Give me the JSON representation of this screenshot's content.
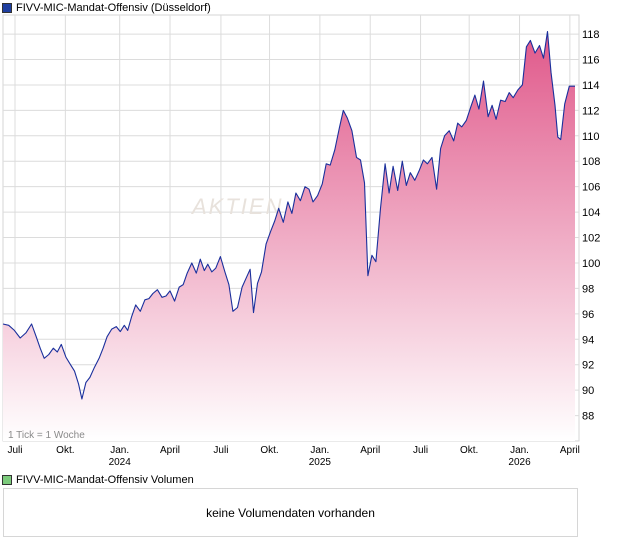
{
  "title": "FIVV-MIC-Mandat-Offensiv (Düsseldorf)",
  "volume_title": "FIVV-MIC-Mandat-Offensiv Volumen",
  "no_volume_text": "keine Volumendaten vorhanden",
  "tick_note": "1 Tick = 1 Woche",
  "watermark": "AKTIEN",
  "colors": {
    "line": "#1a2f9c",
    "fill_top": "#e0588a",
    "fill_bottom": "#ffffff",
    "price_swatch": "#1f3fa0",
    "volume_swatch": "#7ccb7c",
    "grid": "#dcdcdc"
  },
  "chart_data": {
    "type": "area",
    "title": "FIVV-MIC-Mandat-Offensiv (Düsseldorf)",
    "ylim": [
      86,
      119.5
    ],
    "xlim": [
      0,
      100
    ],
    "grid": true,
    "y_ticks": [
      88,
      90,
      92,
      94,
      96,
      98,
      100,
      102,
      104,
      106,
      108,
      110,
      112,
      114,
      116,
      118
    ],
    "x_ticks": [
      {
        "pos": 2.1,
        "label": "Juli",
        "year": ""
      },
      {
        "pos": 10.9,
        "label": "Okt.",
        "year": ""
      },
      {
        "pos": 20.4,
        "label": "Jan.",
        "year": "2024"
      },
      {
        "pos": 29.2,
        "label": "April",
        "year": ""
      },
      {
        "pos": 38.1,
        "label": "Juli",
        "year": ""
      },
      {
        "pos": 46.6,
        "label": "Okt.",
        "year": ""
      },
      {
        "pos": 55.4,
        "label": "Jan.",
        "year": "2025"
      },
      {
        "pos": 64.2,
        "label": "April",
        "year": ""
      },
      {
        "pos": 73.0,
        "label": "Juli",
        "year": ""
      },
      {
        "pos": 81.5,
        "label": "Okt.",
        "year": ""
      },
      {
        "pos": 90.3,
        "label": "Jan.",
        "year": "2026"
      },
      {
        "pos": 99.1,
        "label": "April",
        "year": ""
      }
    ],
    "points": [
      [
        0,
        95.2
      ],
      [
        1.0,
        95.1
      ],
      [
        2.0,
        94.7
      ],
      [
        3.0,
        94.1
      ],
      [
        4.0,
        94.5
      ],
      [
        5.0,
        95.2
      ],
      [
        5.8,
        94.2
      ],
      [
        6.5,
        93.3
      ],
      [
        7.2,
        92.5
      ],
      [
        8.0,
        92.8
      ],
      [
        8.8,
        93.3
      ],
      [
        9.5,
        93.0
      ],
      [
        10.2,
        93.6
      ],
      [
        11.0,
        92.6
      ],
      [
        11.8,
        92.0
      ],
      [
        12.5,
        91.5
      ],
      [
        13.2,
        90.5
      ],
      [
        13.8,
        89.3
      ],
      [
        14.5,
        90.6
      ],
      [
        15.2,
        91.0
      ],
      [
        16.0,
        91.8
      ],
      [
        16.8,
        92.5
      ],
      [
        17.5,
        93.3
      ],
      [
        18.2,
        94.2
      ],
      [
        19.0,
        94.8
      ],
      [
        19.8,
        95.0
      ],
      [
        20.5,
        94.6
      ],
      [
        21.2,
        95.1
      ],
      [
        21.8,
        94.7
      ],
      [
        22.5,
        95.8
      ],
      [
        23.2,
        96.7
      ],
      [
        24.0,
        96.2
      ],
      [
        24.8,
        97.1
      ],
      [
        25.5,
        97.2
      ],
      [
        26.2,
        97.6
      ],
      [
        27.0,
        97.9
      ],
      [
        27.8,
        97.3
      ],
      [
        28.5,
        97.4
      ],
      [
        29.2,
        97.8
      ],
      [
        30.0,
        97.0
      ],
      [
        30.8,
        98.1
      ],
      [
        31.5,
        98.3
      ],
      [
        32.2,
        99.2
      ],
      [
        33.0,
        100.0
      ],
      [
        33.8,
        99.2
      ],
      [
        34.5,
        100.3
      ],
      [
        35.2,
        99.4
      ],
      [
        35.8,
        99.9
      ],
      [
        36.5,
        99.3
      ],
      [
        37.2,
        99.6
      ],
      [
        38.0,
        100.5
      ],
      [
        38.8,
        99.3
      ],
      [
        39.5,
        98.3
      ],
      [
        40.2,
        96.2
      ],
      [
        41.0,
        96.5
      ],
      [
        41.8,
        98.1
      ],
      [
        42.5,
        98.8
      ],
      [
        43.2,
        99.5
      ],
      [
        43.8,
        96.1
      ],
      [
        44.5,
        98.4
      ],
      [
        45.2,
        99.3
      ],
      [
        46.0,
        101.5
      ],
      [
        46.8,
        102.5
      ],
      [
        47.5,
        103.3
      ],
      [
        48.2,
        104.3
      ],
      [
        49.0,
        103.2
      ],
      [
        49.8,
        104.8
      ],
      [
        50.5,
        103.9
      ],
      [
        51.2,
        105.5
      ],
      [
        52.0,
        104.9
      ],
      [
        52.8,
        106.0
      ],
      [
        53.5,
        105.8
      ],
      [
        54.2,
        104.8
      ],
      [
        55.0,
        105.3
      ],
      [
        55.8,
        106.2
      ],
      [
        56.5,
        107.8
      ],
      [
        57.2,
        107.7
      ],
      [
        58.0,
        108.9
      ],
      [
        58.8,
        110.6
      ],
      [
        59.5,
        112.0
      ],
      [
        60.2,
        111.4
      ],
      [
        61.0,
        110.4
      ],
      [
        61.8,
        108.3
      ],
      [
        62.5,
        108.1
      ],
      [
        63.2,
        106.3
      ],
      [
        63.8,
        99.0
      ],
      [
        64.5,
        100.6
      ],
      [
        65.2,
        100.1
      ],
      [
        66.0,
        104.3
      ],
      [
        66.8,
        107.8
      ],
      [
        67.5,
        105.5
      ],
      [
        68.2,
        107.6
      ],
      [
        69.0,
        105.7
      ],
      [
        69.8,
        108.0
      ],
      [
        70.5,
        106.1
      ],
      [
        71.2,
        107.1
      ],
      [
        72.0,
        106.5
      ],
      [
        72.8,
        107.3
      ],
      [
        73.5,
        108.1
      ],
      [
        74.2,
        107.8
      ],
      [
        75.0,
        108.3
      ],
      [
        75.8,
        105.8
      ],
      [
        76.5,
        109.0
      ],
      [
        77.2,
        110.0
      ],
      [
        78.0,
        110.4
      ],
      [
        78.8,
        109.6
      ],
      [
        79.5,
        111.0
      ],
      [
        80.2,
        110.7
      ],
      [
        81.0,
        111.2
      ],
      [
        81.8,
        112.3
      ],
      [
        82.5,
        113.2
      ],
      [
        83.2,
        112.1
      ],
      [
        84.0,
        114.3
      ],
      [
        84.8,
        111.5
      ],
      [
        85.5,
        112.4
      ],
      [
        86.2,
        111.3
      ],
      [
        87.0,
        112.8
      ],
      [
        87.8,
        112.7
      ],
      [
        88.5,
        113.4
      ],
      [
        89.2,
        113.0
      ],
      [
        90.0,
        113.6
      ],
      [
        90.8,
        114.0
      ],
      [
        91.5,
        117.0
      ],
      [
        92.2,
        117.5
      ],
      [
        93.0,
        116.5
      ],
      [
        93.8,
        117.1
      ],
      [
        94.5,
        116.1
      ],
      [
        95.2,
        118.2
      ],
      [
        95.8,
        115.0
      ],
      [
        96.5,
        112.4
      ],
      [
        97.0,
        109.9
      ],
      [
        97.5,
        109.7
      ],
      [
        98.2,
        112.5
      ],
      [
        99.0,
        113.9
      ],
      [
        100.0,
        113.9
      ]
    ]
  }
}
